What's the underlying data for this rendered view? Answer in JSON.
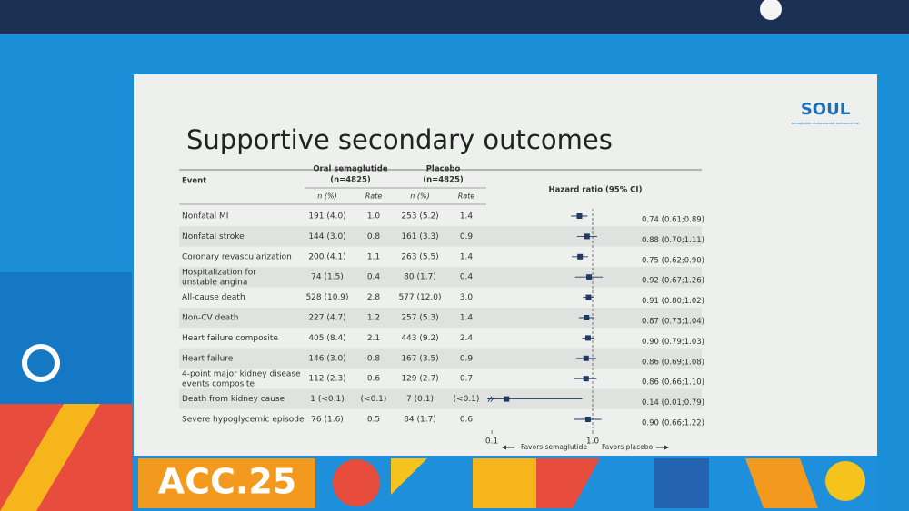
{
  "slide": {
    "logo": "SOUL",
    "logo_sub": "semaglutide cardiovascular outcomes trial",
    "footer": "ACC.25"
  },
  "chart_data": {
    "type": "forest",
    "title": "Supportive secondary outcomes",
    "row_header": "Event",
    "hr_header": "Hazard ratio (95% CI)",
    "groups": [
      {
        "name": "Oral semaglutide",
        "n": "(n=4825)"
      },
      {
        "name": "Placebo",
        "n": "(n=4825)"
      }
    ],
    "subheaders": [
      "n (%)",
      "Rate",
      "n (%)",
      "Rate"
    ],
    "categories": [
      "Nonfatal MI",
      "Nonfatal stroke",
      "Coronary revascularization",
      "Hospitalization for\nunstable angina",
      "All-cause death",
      "Non-CV death",
      "Heart failure composite",
      "Heart failure",
      "4-point major kidney disease\nevents composite",
      "Death from kidney cause",
      "Severe hypoglycemic episode"
    ],
    "rows": [
      [
        "191 (4.0)",
        "1.0",
        "253 (5.2)",
        "1.4"
      ],
      [
        "144 (3.0)",
        "0.8",
        "161 (3.3)",
        "0.9"
      ],
      [
        "200 (4.1)",
        "1.1",
        "263 (5.5)",
        "1.4"
      ],
      [
        "74 (1.5)",
        "0.4",
        "80 (1.7)",
        "0.4"
      ],
      [
        "528 (10.9)",
        "2.8",
        "577 (12.0)",
        "3.0"
      ],
      [
        "227 (4.7)",
        "1.2",
        "257 (5.3)",
        "1.4"
      ],
      [
        "405 (8.4)",
        "2.1",
        "443 (9.2)",
        "2.4"
      ],
      [
        "146 (3.0)",
        "0.8",
        "167 (3.5)",
        "0.9"
      ],
      [
        "112 (2.3)",
        "0.6",
        "129 (2.7)",
        "0.7"
      ],
      [
        "1 (<0.1)",
        "(<0.1)",
        "7 (0.1)",
        "(<0.1)"
      ],
      [
        "76 (1.6)",
        "0.5",
        "84 (1.7)",
        "0.6"
      ]
    ],
    "values": [
      0.74,
      0.88,
      0.75,
      0.92,
      0.91,
      0.87,
      0.9,
      0.86,
      0.86,
      0.14,
      0.9
    ],
    "lower": [
      0.61,
      0.7,
      0.62,
      0.67,
      0.8,
      0.73,
      0.79,
      0.69,
      0.66,
      0.01,
      0.66
    ],
    "upper": [
      0.89,
      1.11,
      0.9,
      1.26,
      1.02,
      1.04,
      1.03,
      1.08,
      1.1,
      0.79,
      1.22
    ],
    "value_labels": [
      "0.74 (0.61;0.89)",
      "0.88 (0.70;1.11)",
      "0.75 (0.62;0.90)",
      "0.92 (0.67;1.26)",
      "0.91 (0.80;1.02)",
      "0.87 (0.73;1.04)",
      "0.90 (0.79;1.03)",
      "0.86 (0.69;1.08)",
      "0.86 (0.66;1.10)",
      "0.14 (0.01;0.79)",
      "0.90 (0.66;1.22)"
    ],
    "xlim": [
      0.09,
      2.2
    ],
    "xticks": [
      0.1,
      {
        "value": 1,
        "label": "1.0"
      }
    ],
    "log_x": true,
    "reference": 1,
    "color": "#1f3a66",
    "favors_left": "Favors semaglutide",
    "favors_right": "Favors placebo"
  }
}
